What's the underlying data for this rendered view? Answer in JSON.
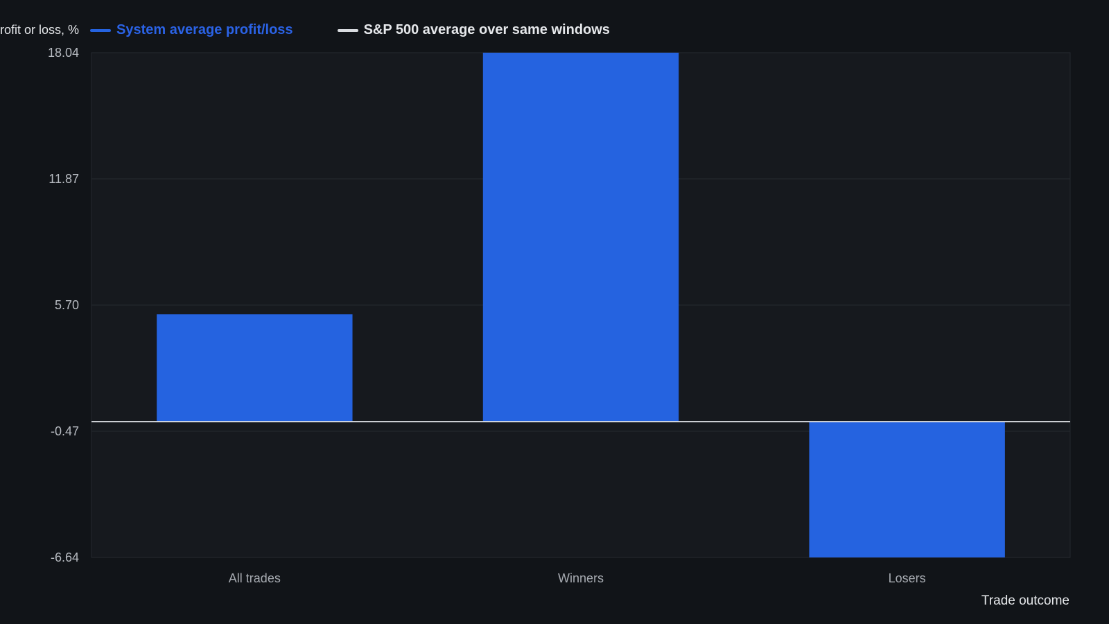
{
  "chart_data": {
    "type": "bar",
    "ylabel": "Profit or loss, %",
    "xlabel": "Trade outcome",
    "categories": [
      "All trades",
      "Winners",
      "Losers"
    ],
    "series": [
      {
        "name": "System average profit/loss",
        "color": "#2563e0",
        "values": [
          5.25,
          18.04,
          -6.64
        ]
      },
      {
        "name": "S&P 500 average over same windows",
        "color": "#d9dce0",
        "values": [
          0.0,
          0.0,
          0.0
        ]
      }
    ],
    "yticks": [
      18.04,
      11.87,
      5.7,
      -0.47,
      -6.64
    ],
    "ylim": [
      -6.64,
      18.04
    ],
    "grid": true,
    "legend_position": "top-left"
  }
}
